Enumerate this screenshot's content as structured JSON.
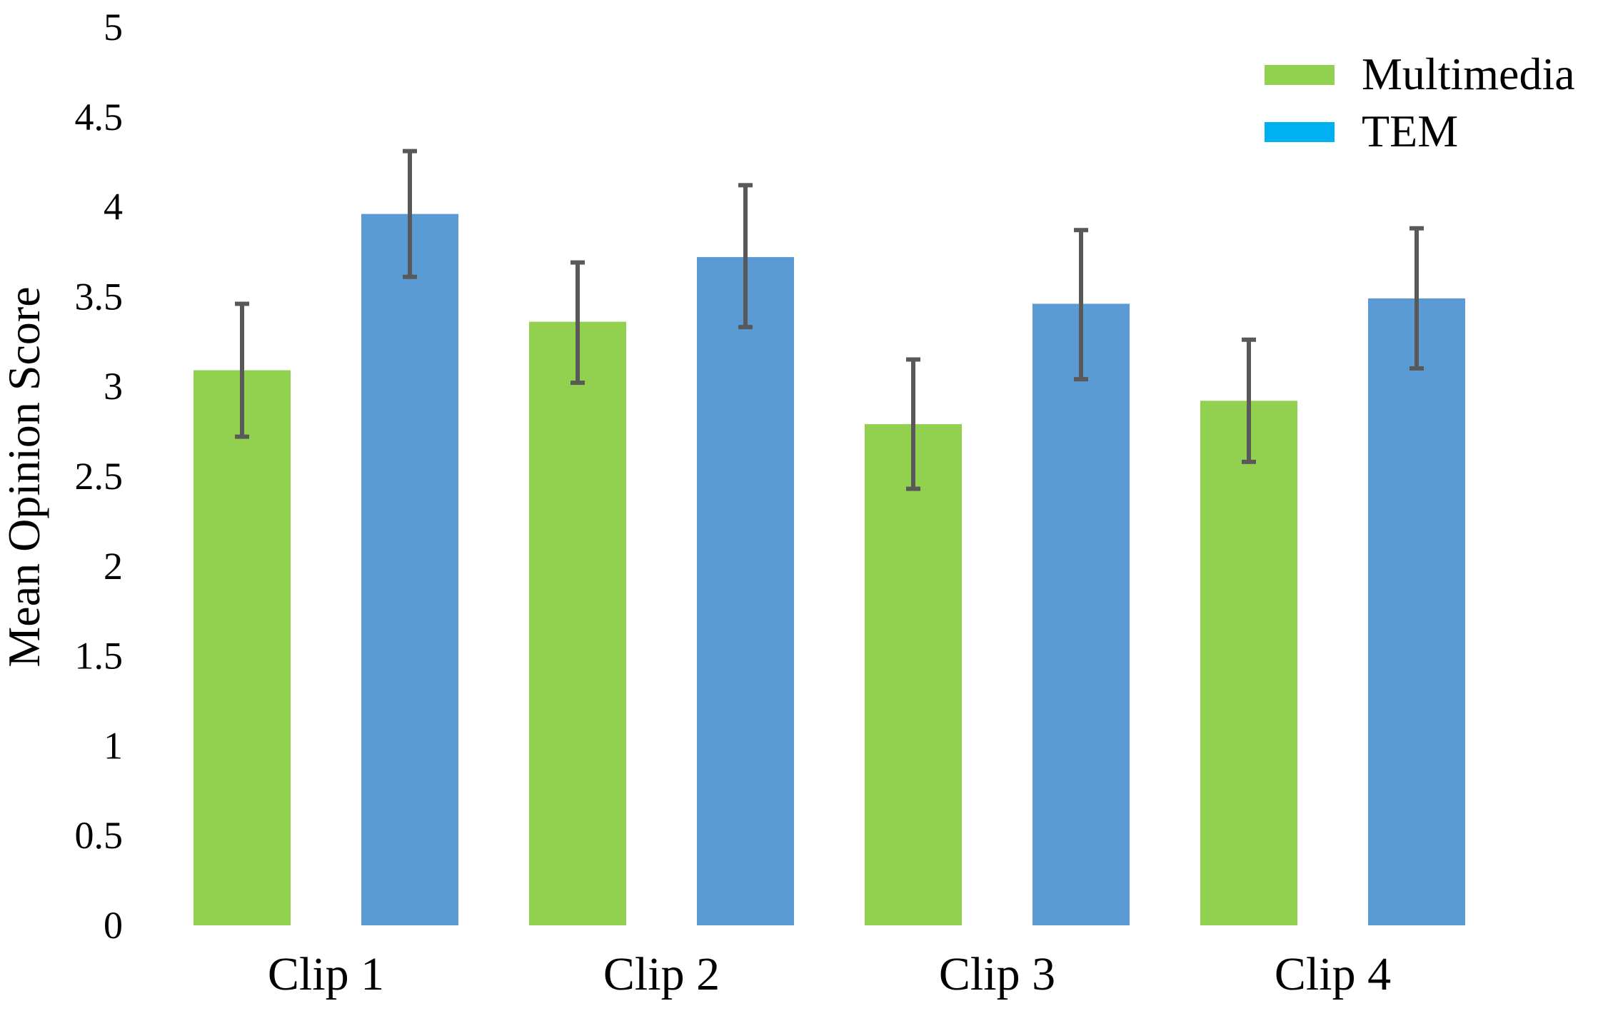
{
  "chart_data": {
    "type": "bar",
    "title": "",
    "xlabel": "",
    "ylabel": "Mean Opinion Score",
    "ylim": [
      0,
      5
    ],
    "yticks": [
      "0",
      "0.5",
      "1",
      "1.5",
      "2",
      "2.5",
      "3",
      "3.5",
      "4",
      "4.5",
      "5"
    ],
    "categories": [
      "Clip 1",
      "Clip 2",
      "Clip 3",
      "Clip 4"
    ],
    "series": [
      {
        "name": "Multimedia",
        "color": "#92D050",
        "values": [
          3.09,
          3.36,
          2.79,
          2.92
        ],
        "error_low": [
          2.72,
          3.02,
          2.43,
          2.58
        ],
        "error_high": [
          3.46,
          3.69,
          3.15,
          3.26
        ]
      },
      {
        "name": "TEM",
        "color": "#5B9BD5",
        "legend_color": "#00B0F0",
        "values": [
          3.96,
          3.72,
          3.46,
          3.49
        ],
        "error_low": [
          3.61,
          3.33,
          3.04,
          3.1
        ],
        "error_high": [
          4.31,
          4.12,
          3.87,
          3.88
        ]
      }
    ],
    "error_bar_color": "#595959",
    "grid": false,
    "legend_position": "top-right"
  }
}
